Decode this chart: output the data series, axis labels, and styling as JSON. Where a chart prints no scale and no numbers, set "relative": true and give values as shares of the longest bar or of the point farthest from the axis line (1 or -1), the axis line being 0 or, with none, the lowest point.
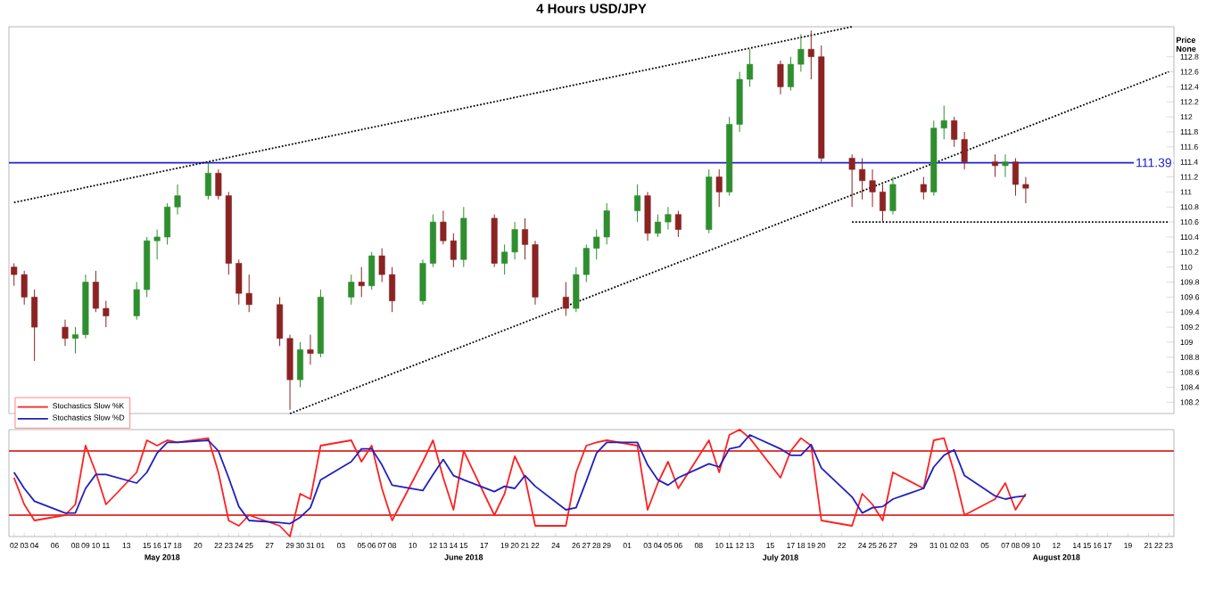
{
  "chart_data": [
    {
      "type": "candlestick",
      "title": "4 Hours USD/JPY",
      "ylabel": "Price None",
      "tick_labels": "y",
      "xlim": [
        "2018-05-01T12:00",
        "2018-08-23T12:00"
      ],
      "ylim": [
        108.05,
        113.2
      ],
      "yticks": [
        108.2,
        108.4,
        108.6,
        108.8,
        109,
        109.2,
        109.4,
        109.6,
        109.8,
        110,
        110.2,
        110.4,
        110.6,
        110.8,
        111,
        111.2,
        111.4,
        111.6,
        111.8,
        112,
        112.2,
        112.4,
        112.6,
        112.8
      ],
      "x": [
        "2018-05-02",
        "2018-05-03",
        "2018-05-04",
        "2018-05-07",
        "2018-05-08",
        "2018-05-09",
        "2018-05-10",
        "2018-05-11",
        "2018-05-14",
        "2018-05-15",
        "2018-05-16",
        "2018-05-17",
        "2018-05-18",
        "2018-05-21",
        "2018-05-22",
        "2018-05-23",
        "2018-05-24",
        "2018-05-25",
        "2018-05-28",
        "2018-05-29",
        "2018-05-30",
        "2018-05-31",
        "2018-06-01",
        "2018-06-04",
        "2018-06-05",
        "2018-06-06",
        "2018-06-07",
        "2018-06-08",
        "2018-06-11",
        "2018-06-12",
        "2018-06-13",
        "2018-06-14",
        "2018-06-15",
        "2018-06-18",
        "2018-06-19",
        "2018-06-20",
        "2018-06-21",
        "2018-06-22",
        "2018-06-25",
        "2018-06-26",
        "2018-06-27",
        "2018-06-28",
        "2018-06-29",
        "2018-07-02",
        "2018-07-03",
        "2018-07-04",
        "2018-07-05",
        "2018-07-06",
        "2018-07-09",
        "2018-07-10",
        "2018-07-11",
        "2018-07-12",
        "2018-07-13",
        "2018-07-16",
        "2018-07-17",
        "2018-07-18",
        "2018-07-19",
        "2018-07-20",
        "2018-07-23",
        "2018-07-24",
        "2018-07-25",
        "2018-07-26",
        "2018-07-27",
        "2018-07-30",
        "2018-07-31",
        "2018-08-01",
        "2018-08-02",
        "2018-08-03",
        "2018-08-06",
        "2018-08-07",
        "2018-08-08",
        "2018-08-09"
      ],
      "ohlc": [
        [
          110.0,
          110.05,
          109.75,
          109.9
        ],
        [
          109.9,
          109.95,
          109.5,
          109.6
        ],
        [
          109.6,
          109.7,
          108.75,
          109.2
        ],
        [
          109.2,
          109.3,
          108.95,
          109.05
        ],
        [
          109.05,
          109.2,
          108.85,
          109.1
        ],
        [
          109.1,
          109.9,
          109.05,
          109.8
        ],
        [
          109.8,
          109.95,
          109.4,
          109.45
        ],
        [
          109.45,
          109.55,
          109.2,
          109.35
        ],
        [
          109.35,
          109.8,
          109.3,
          109.7
        ],
        [
          109.7,
          110.4,
          109.6,
          110.35
        ],
        [
          110.35,
          110.5,
          110.1,
          110.4
        ],
        [
          110.4,
          110.85,
          110.3,
          110.8
        ],
        [
          110.8,
          111.1,
          110.7,
          110.95
        ],
        [
          110.95,
          111.39,
          110.9,
          111.25
        ],
        [
          111.25,
          111.3,
          110.9,
          110.95
        ],
        [
          110.95,
          111.0,
          109.9,
          110.05
        ],
        [
          110.05,
          110.1,
          109.5,
          109.65
        ],
        [
          109.65,
          109.9,
          109.4,
          109.5
        ],
        [
          109.5,
          109.6,
          108.95,
          109.05
        ],
        [
          109.05,
          109.1,
          108.1,
          108.5
        ],
        [
          108.5,
          109.0,
          108.4,
          108.9
        ],
        [
          108.9,
          109.1,
          108.7,
          108.85
        ],
        [
          108.85,
          109.7,
          108.8,
          109.6
        ],
        [
          109.6,
          109.9,
          109.5,
          109.8
        ],
        [
          109.8,
          110.0,
          109.6,
          109.75
        ],
        [
          109.75,
          110.2,
          109.7,
          110.15
        ],
        [
          110.15,
          110.25,
          109.8,
          109.9
        ],
        [
          109.9,
          110.0,
          109.4,
          109.55
        ],
        [
          109.55,
          110.1,
          109.5,
          110.05
        ],
        [
          110.05,
          110.7,
          110.0,
          110.6
        ],
        [
          110.6,
          110.75,
          110.3,
          110.35
        ],
        [
          110.35,
          110.45,
          110.0,
          110.1
        ],
        [
          110.1,
          110.8,
          110.0,
          110.65
        ],
        [
          110.65,
          110.7,
          110.0,
          110.05
        ],
        [
          110.05,
          110.3,
          109.9,
          110.2
        ],
        [
          110.2,
          110.6,
          110.1,
          110.5
        ],
        [
          110.5,
          110.65,
          110.1,
          110.3
        ],
        [
          110.3,
          110.35,
          109.5,
          109.6
        ],
        [
          109.6,
          109.8,
          109.35,
          109.45
        ],
        [
          109.45,
          110.0,
          109.4,
          109.9
        ],
        [
          109.9,
          110.3,
          109.8,
          110.25
        ],
        [
          110.25,
          110.5,
          110.1,
          110.4
        ],
        [
          110.4,
          110.85,
          110.3,
          110.75
        ],
        [
          110.75,
          111.1,
          110.6,
          110.95
        ],
        [
          110.95,
          111.0,
          110.35,
          110.45
        ],
        [
          110.45,
          110.7,
          110.4,
          110.6
        ],
        [
          110.6,
          110.8,
          110.5,
          110.7
        ],
        [
          110.7,
          110.75,
          110.4,
          110.5
        ],
        [
          110.5,
          111.3,
          110.45,
          111.2
        ],
        [
          111.2,
          111.3,
          110.8,
          111.0
        ],
        [
          111.0,
          112.0,
          110.95,
          111.9
        ],
        [
          111.9,
          112.6,
          111.8,
          112.5
        ],
        [
          112.5,
          112.9,
          112.4,
          112.7
        ],
        [
          112.7,
          112.75,
          112.3,
          112.4
        ],
        [
          112.4,
          112.8,
          112.35,
          112.7
        ],
        [
          112.7,
          113.1,
          112.6,
          112.9
        ],
        [
          112.9,
          113.15,
          112.5,
          112.8
        ],
        [
          112.8,
          112.95,
          111.4,
          111.45
        ],
        [
          111.45,
          111.5,
          110.8,
          111.3
        ],
        [
          111.3,
          111.45,
          110.9,
          111.15
        ],
        [
          111.15,
          111.3,
          110.8,
          111.0
        ],
        [
          111.0,
          111.1,
          110.6,
          110.75
        ],
        [
          110.75,
          111.2,
          110.7,
          111.1
        ],
        [
          111.1,
          111.2,
          110.9,
          111.0
        ],
        [
          111.0,
          111.95,
          110.95,
          111.85
        ],
        [
          111.85,
          112.15,
          111.7,
          111.95
        ],
        [
          111.95,
          112.0,
          111.6,
          111.7
        ],
        [
          111.7,
          111.8,
          111.3,
          111.4
        ],
        [
          111.4,
          111.5,
          111.2,
          111.35
        ],
        [
          111.35,
          111.5,
          111.2,
          111.4
        ],
        [
          111.4,
          111.45,
          110.95,
          111.1
        ],
        [
          111.1,
          111.2,
          110.85,
          111.05
        ]
      ],
      "colors": [
        "#8b2323",
        "#8b2323",
        "#8b2323",
        "#8b2323",
        "#2f8f2f",
        "#2f8f2f",
        "#8b2323",
        "#8b2323",
        "#2f8f2f",
        "#2f8f2f",
        "#2f8f2f",
        "#2f8f2f",
        "#2f8f2f",
        "#2f8f2f",
        "#8b2323",
        "#8b2323",
        "#8b2323",
        "#8b2323",
        "#8b2323",
        "#8b2323",
        "#2f8f2f",
        "#8b2323",
        "#2f8f2f",
        "#2f8f2f",
        "#8b2323",
        "#2f8f2f",
        "#8b2323",
        "#8b2323",
        "#2f8f2f",
        "#2f8f2f",
        "#8b2323",
        "#8b2323",
        "#2f8f2f",
        "#8b2323",
        "#2f8f2f",
        "#2f8f2f",
        "#8b2323",
        "#8b2323",
        "#8b2323",
        "#2f8f2f",
        "#2f8f2f",
        "#2f8f2f",
        "#2f8f2f",
        "#2f8f2f",
        "#8b2323",
        "#2f8f2f",
        "#2f8f2f",
        "#8b2323",
        "#2f8f2f",
        "#8b2323",
        "#2f8f2f",
        "#2f8f2f",
        "#2f8f2f",
        "#8b2323",
        "#2f8f2f",
        "#2f8f2f",
        "#8b2323",
        "#8b2323",
        "#8b2323",
        "#8b2323",
        "#8b2323",
        "#8b2323",
        "#2f8f2f",
        "#8b2323",
        "#2f8f2f",
        "#2f8f2f",
        "#8b2323",
        "#8b2323",
        "#8b2323",
        "#2f8f2f",
        "#8b2323",
        "#8b2323"
      ],
      "series": [
        {
          "type": "line",
          "color": "#000000",
          "line_style": "dotted",
          "x": [
            "2018-05-02",
            "2018-07-23"
          ],
          "values": [
            110.86,
            113.2
          ]
        },
        {
          "type": "line",
          "color": "#000000",
          "line_style": "dotted",
          "x": [
            "2018-05-29",
            "2018-08-23"
          ],
          "values": [
            108.05,
            112.6
          ]
        },
        {
          "type": "line",
          "color": "#000000",
          "line_style": "dotted",
          "x": [
            "2018-07-23",
            "2018-08-23"
          ],
          "values": [
            110.6,
            110.6
          ]
        }
      ],
      "ref_lines": [
        {
          "axis": "y",
          "value": 111.39,
          "label": "111.39",
          "color": "#2020d0"
        }
      ]
    },
    {
      "type": "line",
      "relative": true,
      "tick_labels": "x",
      "legend": "top left",
      "xlim": [
        "2018-05-01T12:00",
        "2018-08-23T12:00"
      ],
      "xticks": [
        {
          "value": "2018-05-02",
          "label": "02"
        },
        {
          "value": "2018-05-03",
          "label": "03"
        },
        {
          "value": "2018-05-04",
          "label": "04"
        },
        {
          "value": "2018-05-06",
          "label": "06"
        },
        {
          "value": "2018-05-08",
          "label": "08"
        },
        {
          "value": "2018-05-09",
          "label": "09"
        },
        {
          "value": "2018-05-10",
          "label": "10"
        },
        {
          "value": "2018-05-11",
          "label": "11"
        },
        {
          "value": "2018-05-13",
          "label": "13"
        },
        {
          "value": "2018-05-15",
          "label": "15"
        },
        {
          "value": "2018-05-16",
          "label": "16"
        },
        {
          "value": "2018-05-17",
          "label": "17"
        },
        {
          "value": "2018-05-18",
          "label": "18"
        },
        {
          "value": "2018-05-20",
          "label": "20"
        },
        {
          "value": "2018-05-22",
          "label": "22"
        },
        {
          "value": "2018-05-23",
          "label": "23"
        },
        {
          "value": "2018-05-24",
          "label": "24"
        },
        {
          "value": "2018-05-25",
          "label": "25"
        },
        {
          "value": "2018-05-27",
          "label": "27"
        },
        {
          "value": "2018-05-29",
          "label": "29"
        },
        {
          "value": "2018-05-30",
          "label": "30"
        },
        {
          "value": "2018-05-31",
          "label": "31"
        },
        {
          "value": "2018-06-01",
          "label": "01"
        },
        {
          "value": "2018-06-03",
          "label": "03"
        },
        {
          "value": "2018-06-05",
          "label": "05"
        },
        {
          "value": "2018-06-06",
          "label": "06"
        },
        {
          "value": "2018-06-07",
          "label": "07"
        },
        {
          "value": "2018-06-08",
          "label": "08"
        },
        {
          "value": "2018-06-10",
          "label": "10"
        },
        {
          "value": "2018-06-12",
          "label": "12"
        },
        {
          "value": "2018-06-13",
          "label": "13"
        },
        {
          "value": "2018-06-14",
          "label": "14"
        },
        {
          "value": "2018-06-15",
          "label": "15"
        },
        {
          "value": "2018-06-17",
          "label": "17"
        },
        {
          "value": "2018-06-19",
          "label": "19"
        },
        {
          "value": "2018-06-20",
          "label": "20"
        },
        {
          "value": "2018-06-21",
          "label": "21"
        },
        {
          "value": "2018-06-22",
          "label": "22"
        },
        {
          "value": "2018-06-24",
          "label": "24"
        },
        {
          "value": "2018-06-26",
          "label": "26"
        },
        {
          "value": "2018-06-27",
          "label": "27"
        },
        {
          "value": "2018-06-28",
          "label": "28"
        },
        {
          "value": "2018-06-29",
          "label": "29"
        },
        {
          "value": "2018-07-01",
          "label": "01"
        },
        {
          "value": "2018-07-03",
          "label": "03"
        },
        {
          "value": "2018-07-04",
          "label": "04"
        },
        {
          "value": "2018-07-05",
          "label": "05"
        },
        {
          "value": "2018-07-06",
          "label": "06"
        },
        {
          "value": "2018-07-08",
          "label": "08"
        },
        {
          "value": "2018-07-10",
          "label": "10"
        },
        {
          "value": "2018-07-11",
          "label": "11"
        },
        {
          "value": "2018-07-12",
          "label": "12"
        },
        {
          "value": "2018-07-13",
          "label": "13"
        },
        {
          "value": "2018-07-15",
          "label": "15"
        },
        {
          "value": "2018-07-17",
          "label": "17"
        },
        {
          "value": "2018-07-18",
          "label": "18"
        },
        {
          "value": "2018-07-19",
          "label": "19"
        },
        {
          "value": "2018-07-20",
          "label": "20"
        },
        {
          "value": "2018-07-22",
          "label": "22"
        },
        {
          "value": "2018-07-24",
          "label": "24"
        },
        {
          "value": "2018-07-25",
          "label": "25"
        },
        {
          "value": "2018-07-26",
          "label": "26"
        },
        {
          "value": "2018-07-27",
          "label": "27"
        },
        {
          "value": "2018-07-29",
          "label": "29"
        },
        {
          "value": "2018-07-31",
          "label": "31"
        },
        {
          "value": "2018-08-01",
          "label": "01"
        },
        {
          "value": "2018-08-02",
          "label": "02"
        },
        {
          "value": "2018-08-03",
          "label": "03"
        },
        {
          "value": "2018-08-05",
          "label": "05"
        },
        {
          "value": "2018-08-07",
          "label": "07"
        },
        {
          "value": "2018-08-08",
          "label": "08"
        },
        {
          "value": "2018-08-09",
          "label": "09"
        },
        {
          "value": "2018-08-10",
          "label": "10"
        },
        {
          "value": "2018-08-12",
          "label": "12"
        },
        {
          "value": "2018-08-14",
          "label": "14"
        },
        {
          "value": "2018-08-15",
          "label": "15"
        },
        {
          "value": "2018-08-16",
          "label": "16"
        },
        {
          "value": "2018-08-17",
          "label": "17"
        },
        {
          "value": "2018-08-19",
          "label": "19"
        },
        {
          "value": "2018-08-21",
          "label": "21"
        },
        {
          "value": "2018-08-22",
          "label": "22"
        },
        {
          "value": "2018-08-23",
          "label": "23"
        }
      ],
      "x": [
        "2018-05-02",
        "2018-05-03",
        "2018-05-04",
        "2018-05-07",
        "2018-05-08",
        "2018-05-09",
        "2018-05-10",
        "2018-05-11",
        "2018-05-14",
        "2018-05-15",
        "2018-05-16",
        "2018-05-17",
        "2018-05-18",
        "2018-05-21",
        "2018-05-22",
        "2018-05-23",
        "2018-05-24",
        "2018-05-25",
        "2018-05-28",
        "2018-05-29",
        "2018-05-30",
        "2018-05-31",
        "2018-06-01",
        "2018-06-04",
        "2018-06-05",
        "2018-06-06",
        "2018-06-07",
        "2018-06-08",
        "2018-06-11",
        "2018-06-12",
        "2018-06-13",
        "2018-06-14",
        "2018-06-15",
        "2018-06-18",
        "2018-06-19",
        "2018-06-20",
        "2018-06-21",
        "2018-06-22",
        "2018-06-25",
        "2018-06-26",
        "2018-06-27",
        "2018-06-28",
        "2018-06-29",
        "2018-07-02",
        "2018-07-03",
        "2018-07-04",
        "2018-07-05",
        "2018-07-06",
        "2018-07-09",
        "2018-07-10",
        "2018-07-11",
        "2018-07-12",
        "2018-07-13",
        "2018-07-16",
        "2018-07-17",
        "2018-07-18",
        "2018-07-19",
        "2018-07-20",
        "2018-07-23",
        "2018-07-24",
        "2018-07-25",
        "2018-07-26",
        "2018-07-27",
        "2018-07-30",
        "2018-07-31",
        "2018-08-01",
        "2018-08-02",
        "2018-08-03",
        "2018-08-06",
        "2018-08-07",
        "2018-08-08",
        "2018-08-09"
      ],
      "series": [
        {
          "name": "Stochastics Slow %K",
          "color": "#ff2020",
          "values": [
            0.55,
            0.3,
            0.15,
            0.2,
            0.3,
            0.85,
            0.6,
            0.3,
            0.6,
            0.9,
            0.85,
            0.9,
            0.88,
            0.92,
            0.6,
            0.15,
            0.1,
            0.2,
            0.1,
            0,
            0.4,
            0.35,
            0.85,
            0.9,
            0.7,
            0.85,
            0.45,
            0.15,
            0.7,
            0.9,
            0.55,
            0.25,
            0.8,
            0.2,
            0.4,
            0.75,
            0.55,
            0.1,
            0.1,
            0.6,
            0.85,
            0.88,
            0.9,
            0.85,
            0.25,
            0.5,
            0.7,
            0.45,
            0.9,
            0.6,
            0.95,
            1,
            0.92,
            0.55,
            0.8,
            0.92,
            0.85,
            0.15,
            0.1,
            0.4,
            0.3,
            0.15,
            0.6,
            0.45,
            0.9,
            0.92,
            0.6,
            0.2,
            0.35,
            0.5,
            0.25,
            0.4
          ]
        },
        {
          "name": "Stochastics Slow %D",
          "color": "#2020c0",
          "values": [
            0.6,
            0.45,
            0.33,
            0.22,
            0.22,
            0.45,
            0.58,
            0.58,
            0.5,
            0.6,
            0.78,
            0.88,
            0.88,
            0.9,
            0.8,
            0.55,
            0.28,
            0.15,
            0.13,
            0.12,
            0.18,
            0.27,
            0.53,
            0.7,
            0.82,
            0.82,
            0.67,
            0.48,
            0.43,
            0.58,
            0.72,
            0.57,
            0.53,
            0.42,
            0.47,
            0.45,
            0.57,
            0.47,
            0.25,
            0.27,
            0.52,
            0.78,
            0.88,
            0.88,
            0.67,
            0.53,
            0.48,
            0.55,
            0.68,
            0.65,
            0.82,
            0.84,
            0.95,
            0.82,
            0.76,
            0.76,
            0.86,
            0.64,
            0.37,
            0.22,
            0.27,
            0.28,
            0.35,
            0.45,
            0.65,
            0.76,
            0.81,
            0.57,
            0.38,
            0.35,
            0.37,
            0.38
          ]
        }
      ],
      "ref_lines": [
        {
          "axis": "y",
          "value": 0.2,
          "color": "#e04040"
        },
        {
          "axis": "y",
          "value": 0.8,
          "color": "#e04040"
        }
      ],
      "annotations": [
        "May 2018",
        "June 2018",
        "July 2018",
        "August 2018"
      ]
    }
  ]
}
